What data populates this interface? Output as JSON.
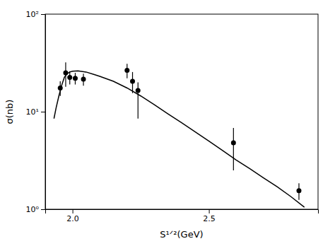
{
  "chart_data": {
    "type": "scatter",
    "xlabel": "S¹ᐟ²(GeV)",
    "ylabel": "σ(nb)",
    "log": "y",
    "grid": false,
    "xlim": [
      1.9,
      2.9
    ],
    "ylim": [
      1.0,
      100.0
    ],
    "xticks": [
      {
        "value": 2.0,
        "label": "2.0"
      },
      2.5
    ],
    "yticks": [
      {
        "value": 1,
        "label": "10⁰"
      },
      {
        "value": 10,
        "label": "10¹"
      },
      {
        "value": 100,
        "label": "10²"
      }
    ],
    "series": [
      {
        "type": "scatter",
        "color": "black",
        "marker": "circle",
        "x": [
          1.955,
          1.975,
          1.99,
          2.01,
          2.04,
          2.2,
          2.22,
          2.24,
          2.59,
          2.83
        ],
        "values": [
          17.5,
          25.0,
          22.5,
          22.0,
          21.5,
          26.5,
          20.5,
          16.5,
          4.8,
          1.55
        ],
        "yerr_up": [
          3.0,
          7.0,
          3.5,
          3.0,
          3.0,
          4.5,
          5.0,
          3.5,
          2.0,
          0.3
        ],
        "yerr_down": [
          3.0,
          7.0,
          3.5,
          3.0,
          3.0,
          4.5,
          5.0,
          8.0,
          2.3,
          0.3
        ]
      },
      {
        "type": "line",
        "color": "black",
        "line_style": "solid",
        "x": [
          1.932,
          1.94,
          1.95,
          1.96,
          1.97,
          1.98,
          1.99,
          2.0,
          2.02,
          2.05,
          2.08,
          2.1,
          2.15,
          2.2,
          2.25,
          2.3,
          2.35,
          2.4,
          2.45,
          2.5,
          2.55,
          2.6,
          2.65,
          2.7,
          2.75,
          2.8,
          2.85
        ],
        "values": [
          8.5,
          11.0,
          14.5,
          18.5,
          22.5,
          24.5,
          25.5,
          26.0,
          26.2,
          25.5,
          24.0,
          23.0,
          20.5,
          17.5,
          14.5,
          11.8,
          9.5,
          7.7,
          6.2,
          5.0,
          4.0,
          3.2,
          2.6,
          2.1,
          1.7,
          1.35,
          1.05
        ]
      }
    ]
  }
}
